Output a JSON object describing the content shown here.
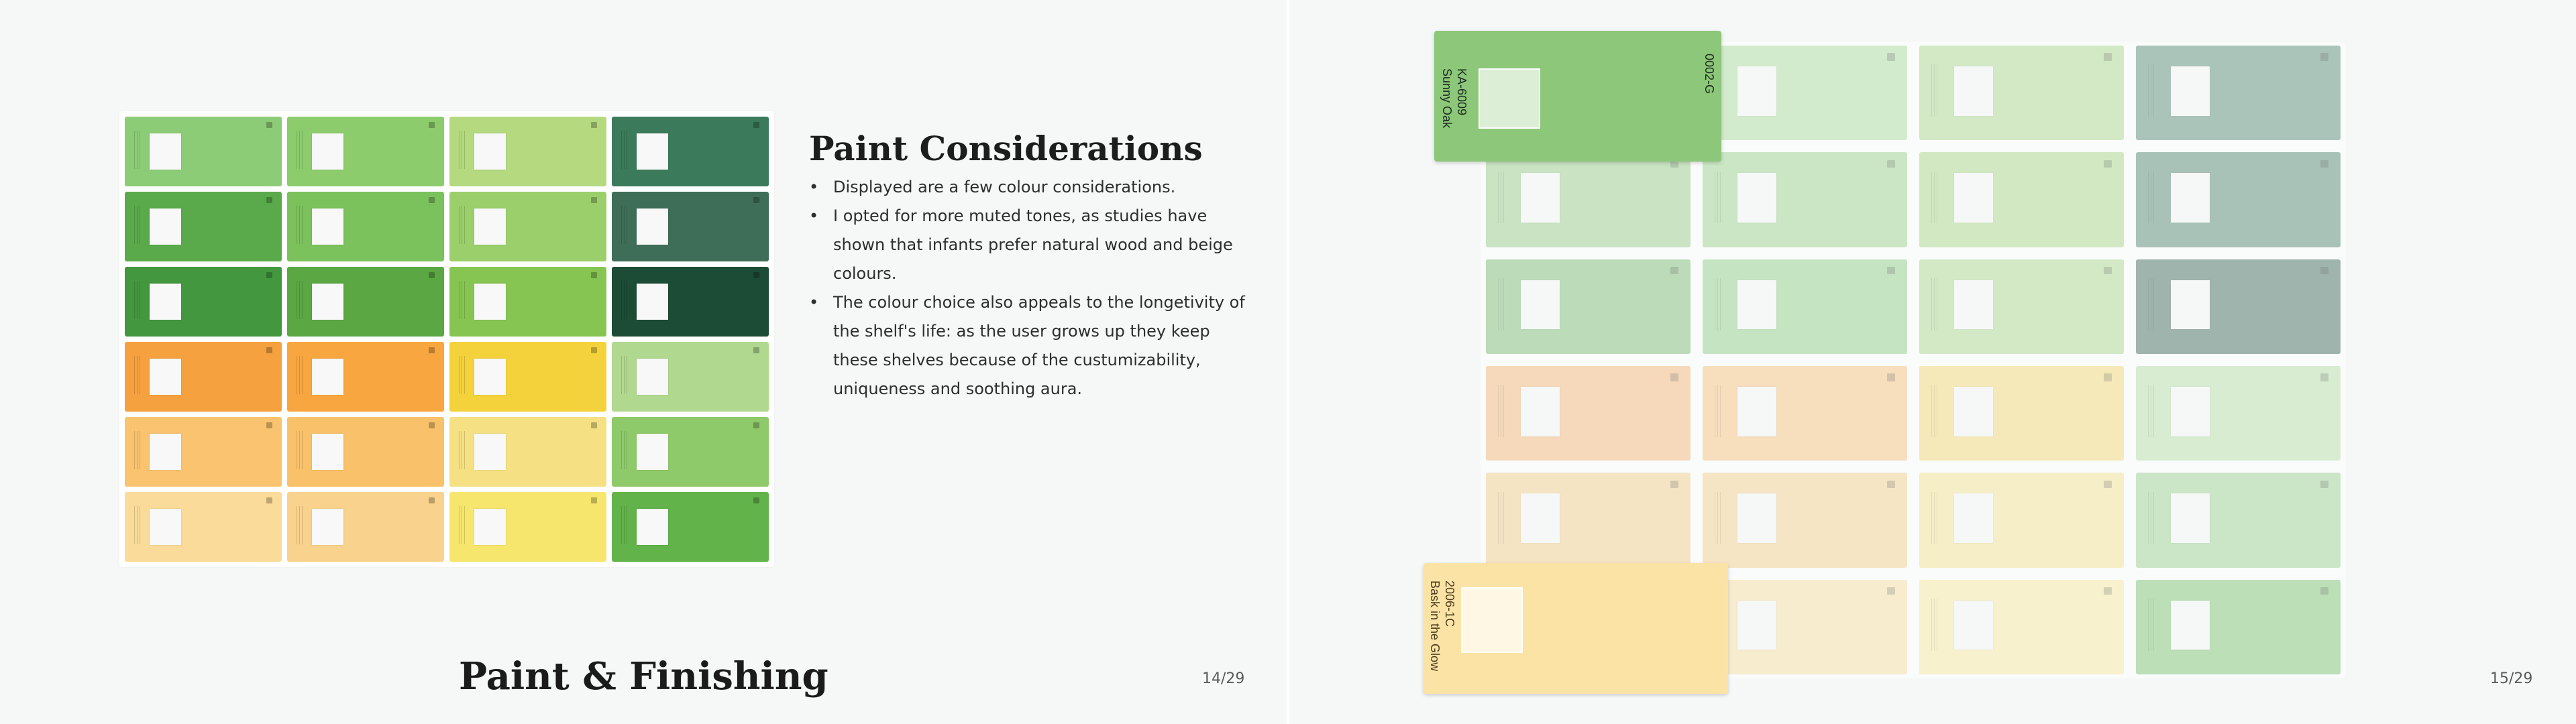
{
  "left_page": {
    "heading": "Paint Considerations",
    "bullets": [
      "Displayed are a few colour considerations.",
      "I opted for more muted tones, as studies have shown that infants prefer natural wood and beige colours.",
      "The colour choice also appeals to the longetivity of the shelf's life: as the user grows up they keep these shelves because of the custumizability, uniqueness and soothing aura."
    ],
    "footer_title": "Paint & Finishing",
    "page_number": "14/29",
    "swatch_colors": [
      [
        "#8ccc76",
        "#8ccc6d",
        "#b4d97f",
        "#3b7a5a"
      ],
      [
        "#5aaa4c",
        "#7bc15c",
        "#9bcf6b",
        "#3e6e58"
      ],
      [
        "#43983f",
        "#5ba743",
        "#86c552",
        "#1c4c36"
      ],
      [
        "#f6a13f",
        "#f8a63f",
        "#f4d23c",
        "#b0d88f"
      ],
      [
        "#f9c36f",
        "#f9c26a",
        "#f5e083",
        "#8fca6a"
      ],
      [
        "#fbdb9a",
        "#f9d38d",
        "#f7e66d",
        "#62b34a"
      ]
    ]
  },
  "right_page": {
    "page_number": "15/29",
    "swatch_colors": [
      [
        "#ffffff",
        "#b9e1ab",
        "#b8de9e",
        "#6f9b87"
      ],
      [
        "#a6d39a",
        "#a8d89b",
        "#b6dc97",
        "#6b9683"
      ],
      [
        "#8fc487",
        "#9fd495",
        "#b8de9e",
        "#5a7d70"
      ],
      [
        "#f6c08a",
        "#f9c98f",
        "#f7de88",
        "#c1e3b3"
      ],
      [
        "#f6d49b",
        "#f8d69c",
        "#f7e7a0",
        "#a9d9a0"
      ],
      [
        "#ffffff",
        "#fbe3b0",
        "#f9ecad",
        "#8fcb83"
      ]
    ],
    "cards": {
      "sunny": {
        "color": "#8cc77a",
        "left_text": "KA-6009\nSunny Oak",
        "right_text": "0002-G"
      },
      "glow": {
        "color": "#fbe3a6",
        "left_text": "2006-1C\nBask in the Glow"
      }
    }
  }
}
